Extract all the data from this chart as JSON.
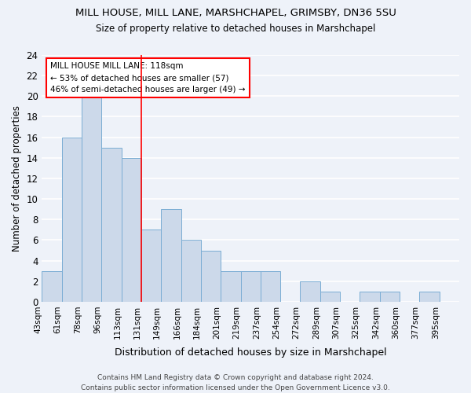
{
  "title1": "MILL HOUSE, MILL LANE, MARSHCHAPEL, GRIMSBY, DN36 5SU",
  "title2": "Size of property relative to detached houses in Marshchapel",
  "xlabel": "Distribution of detached houses by size in Marshchapel",
  "ylabel": "Number of detached properties",
  "categories": [
    "43sqm",
    "61sqm",
    "78sqm",
    "96sqm",
    "113sqm",
    "131sqm",
    "149sqm",
    "166sqm",
    "184sqm",
    "201sqm",
    "219sqm",
    "237sqm",
    "254sqm",
    "272sqm",
    "289sqm",
    "307sqm",
    "325sqm",
    "342sqm",
    "360sqm",
    "377sqm",
    "395sqm"
  ],
  "values": [
    3,
    16,
    20,
    15,
    14,
    7,
    9,
    6,
    5,
    3,
    3,
    3,
    0,
    2,
    1,
    0,
    1,
    1,
    0,
    1,
    0
  ],
  "bar_color": "#ccd9ea",
  "bar_edge_color": "#7aadd4",
  "red_line_index": 4,
  "annotation_box_text": "MILL HOUSE MILL LANE: 118sqm\n← 53% of detached houses are smaller (57)\n46% of semi-detached houses are larger (49) →",
  "background_color": "#eef2f9",
  "grid_color": "#c8d8f0",
  "ylim": [
    0,
    24
  ],
  "yticks": [
    0,
    2,
    4,
    6,
    8,
    10,
    12,
    14,
    16,
    18,
    20,
    22,
    24
  ],
  "footer_text": "Contains HM Land Registry data © Crown copyright and database right 2024.\nContains public sector information licensed under the Open Government Licence v3.0."
}
